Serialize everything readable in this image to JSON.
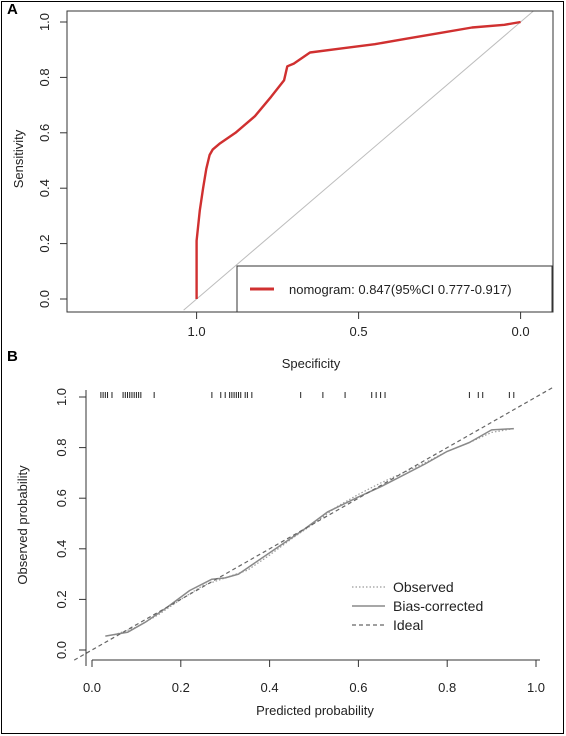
{
  "panels": {
    "a_label": "A",
    "b_label": "B"
  },
  "chart_data": [
    {
      "type": "line",
      "panel": "A",
      "xlabel": "Specificity",
      "ylabel": "Sensitivity",
      "xlim": [
        1.4,
        -0.1
      ],
      "ylim": [
        0,
        1
      ],
      "x_reversed": true,
      "x_ticks": [
        "1.0",
        "0.5",
        "0.0"
      ],
      "y_ticks": [
        "0.0",
        "0.2",
        "0.4",
        "0.6",
        "0.8",
        "1.0"
      ],
      "reference_line": {
        "x": [
          1.0,
          0.0
        ],
        "y": [
          0.0,
          1.0
        ],
        "color": "#bdbdbd"
      },
      "legend_position": "bottom-right",
      "series": [
        {
          "name": "nomogram: 0.847(95%CI 0.777-0.917)",
          "color": "#d03030",
          "specificity": [
            1.0,
            1.0,
            0.99,
            0.98,
            0.97,
            0.96,
            0.95,
            0.93,
            0.88,
            0.82,
            0.77,
            0.73,
            0.72,
            0.7,
            0.65,
            0.55,
            0.45,
            0.35,
            0.25,
            0.15,
            0.05,
            0.0
          ],
          "sensitivity": [
            0.0,
            0.21,
            0.32,
            0.4,
            0.47,
            0.52,
            0.54,
            0.56,
            0.6,
            0.66,
            0.73,
            0.79,
            0.84,
            0.85,
            0.89,
            0.905,
            0.92,
            0.94,
            0.96,
            0.98,
            0.99,
            1.0
          ]
        }
      ]
    },
    {
      "type": "line",
      "panel": "B",
      "xlabel": "Predicted probability",
      "ylabel": "Observed probability",
      "xlim": [
        -0.04,
        1.04
      ],
      "ylim": [
        -0.04,
        1.04
      ],
      "x_ticks": [
        "0.0",
        "0.2",
        "0.4",
        "0.6",
        "0.8",
        "1.0"
      ],
      "y_ticks": [
        "0.0",
        "0.2",
        "0.4",
        "0.6",
        "0.8",
        "1.0"
      ],
      "legend_position": "bottom-right",
      "series": [
        {
          "name": "Observed",
          "style": "dotted",
          "color": "#9a9a9a",
          "x": [
            0.05,
            0.1,
            0.15,
            0.2,
            0.25,
            0.3,
            0.35,
            0.4,
            0.45,
            0.5,
            0.55,
            0.6,
            0.65,
            0.7,
            0.75,
            0.8,
            0.85,
            0.9,
            0.95
          ],
          "y": [
            0.06,
            0.09,
            0.14,
            0.2,
            0.255,
            0.285,
            0.315,
            0.375,
            0.44,
            0.5,
            0.565,
            0.615,
            0.66,
            0.7,
            0.74,
            0.785,
            0.82,
            0.86,
            0.875
          ]
        },
        {
          "name": "Bias-corrected",
          "style": "solid",
          "color": "#8a8a8a",
          "x": [
            0.03,
            0.08,
            0.12,
            0.17,
            0.22,
            0.27,
            0.3,
            0.33,
            0.38,
            0.43,
            0.48,
            0.53,
            0.6,
            0.65,
            0.7,
            0.75,
            0.8,
            0.85,
            0.9,
            0.95
          ],
          "y": [
            0.055,
            0.07,
            0.11,
            0.17,
            0.235,
            0.28,
            0.285,
            0.3,
            0.36,
            0.42,
            0.48,
            0.545,
            0.605,
            0.645,
            0.69,
            0.735,
            0.785,
            0.82,
            0.87,
            0.875
          ]
        },
        {
          "name": "Ideal",
          "style": "dashed",
          "color": "#666666",
          "x": [
            -0.04,
            1.04
          ],
          "y": [
            -0.04,
            1.04
          ]
        }
      ],
      "rug": [
        0.02,
        0.025,
        0.03,
        0.035,
        0.045,
        0.07,
        0.075,
        0.08,
        0.085,
        0.09,
        0.095,
        0.1,
        0.105,
        0.11,
        0.14,
        0.27,
        0.29,
        0.3,
        0.31,
        0.315,
        0.32,
        0.325,
        0.33,
        0.335,
        0.345,
        0.35,
        0.36,
        0.47,
        0.52,
        0.57,
        0.63,
        0.64,
        0.65,
        0.66,
        0.85,
        0.87,
        0.88,
        0.94,
        0.95
      ]
    }
  ]
}
